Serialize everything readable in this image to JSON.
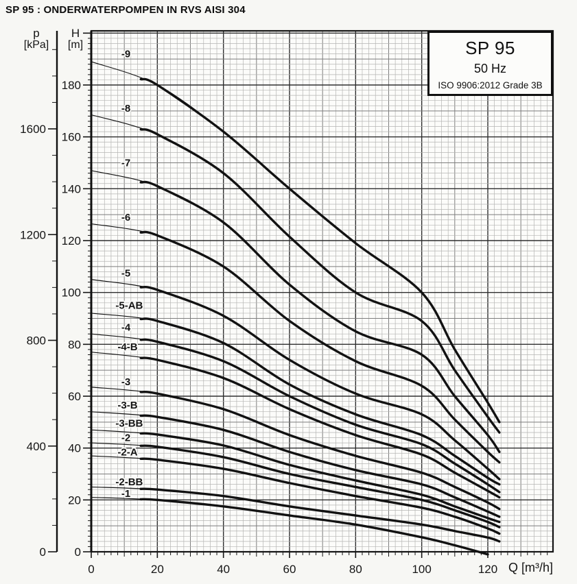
{
  "page": {
    "title": "SP 95 : ONDERWATERPOMPEN IN RVS AISI 304"
  },
  "legend": {
    "model": "SP 95",
    "frequency": "50 Hz",
    "standard": "ISO 9906:2012 Grade 3B"
  },
  "axes": {
    "pressure": {
      "symbol": "p",
      "unit": "[kPa]",
      "tick_labels": [
        0,
        400,
        800,
        1200,
        1600
      ],
      "minor_step": 100,
      "max": 1900
    },
    "head": {
      "symbol": "H",
      "unit": "[m]",
      "tick_labels": [
        0,
        20,
        40,
        60,
        80,
        100,
        120,
        140,
        160,
        180
      ],
      "minor_step": 2,
      "max": 200
    },
    "flow": {
      "title": "Q [m³/h]",
      "tick_labels": [
        0,
        20,
        40,
        60,
        80,
        100,
        120
      ],
      "minor_step": 2,
      "max": 138
    }
  },
  "chart_data": {
    "type": "line",
    "title": "SP 95 pump performance curves, 50 Hz",
    "xlabel": "Q [m³/h]",
    "ylabel_left_outer": "p [kPa]",
    "ylabel_left_inner": "H [m]",
    "xlim": [
      0,
      140
    ],
    "ylim_head_m": [
      0,
      201
    ],
    "ylim_pressure_kpa": [
      0,
      1970
    ],
    "grid": {
      "minor_step": 2,
      "medium_step": 10,
      "major_step": 20,
      "grid_on": true
    },
    "legend_position": "top-right",
    "curve_thin_until_q": 15,
    "series": [
      {
        "label": "-9",
        "shutoff_head_m": 189,
        "label_pos": [
          10.5,
          192
        ],
        "points": [
          [
            0,
            189
          ],
          [
            20,
            180
          ],
          [
            40,
            162
          ],
          [
            60,
            140
          ],
          [
            80,
            119
          ],
          [
            100,
            100
          ],
          [
            110,
            78
          ],
          [
            120,
            57.5
          ],
          [
            123.5,
            50
          ]
        ]
      },
      {
        "label": "-8",
        "shutoff_head_m": 168.5,
        "label_pos": [
          10.5,
          171
        ],
        "points": [
          [
            0,
            168.5
          ],
          [
            20,
            161
          ],
          [
            40,
            146
          ],
          [
            60,
            121.5
          ],
          [
            80,
            100
          ],
          [
            100,
            89
          ],
          [
            110,
            70
          ],
          [
            120,
            52
          ],
          [
            123.5,
            46
          ]
        ]
      },
      {
        "label": "-7",
        "shutoff_head_m": 147,
        "label_pos": [
          10.5,
          150
        ],
        "points": [
          [
            0,
            147
          ],
          [
            20,
            141
          ],
          [
            40,
            127
          ],
          [
            60,
            103
          ],
          [
            80,
            85
          ],
          [
            100,
            76
          ],
          [
            110,
            60
          ],
          [
            120,
            45
          ],
          [
            123.5,
            38.5
          ]
        ]
      },
      {
        "label": "-6",
        "shutoff_head_m": 126.5,
        "label_pos": [
          10.5,
          129
        ],
        "points": [
          [
            0,
            126.5
          ],
          [
            20,
            122
          ],
          [
            40,
            110
          ],
          [
            60,
            89
          ],
          [
            80,
            73.5
          ],
          [
            100,
            64
          ],
          [
            110,
            51
          ],
          [
            120,
            38.5
          ],
          [
            123.5,
            34.5
          ]
        ]
      },
      {
        "label": "-5",
        "shutoff_head_m": 105,
        "label_pos": [
          10.5,
          107.5
        ],
        "points": [
          [
            0,
            105
          ],
          [
            20,
            101
          ],
          [
            40,
            91
          ],
          [
            60,
            74
          ],
          [
            80,
            61
          ],
          [
            100,
            53
          ],
          [
            110,
            43
          ],
          [
            120,
            32
          ],
          [
            123.5,
            28
          ]
        ]
      },
      {
        "label": "-5-AB",
        "shutoff_head_m": 92,
        "label_pos": [
          11.5,
          95
        ],
        "points": [
          [
            0,
            92
          ],
          [
            20,
            89
          ],
          [
            40,
            80.5
          ],
          [
            60,
            64.5
          ],
          [
            80,
            53
          ],
          [
            100,
            45
          ],
          [
            110,
            37
          ],
          [
            120,
            28.5
          ],
          [
            123.5,
            26
          ]
        ]
      },
      {
        "label": "-4",
        "shutoff_head_m": 84,
        "label_pos": [
          10.5,
          86.5
        ],
        "points": [
          [
            0,
            84
          ],
          [
            20,
            81
          ],
          [
            40,
            73.5
          ],
          [
            60,
            60
          ],
          [
            80,
            49
          ],
          [
            100,
            41.5
          ],
          [
            110,
            34
          ],
          [
            120,
            26
          ],
          [
            123.5,
            23
          ]
        ]
      },
      {
        "label": "-4-B",
        "shutoff_head_m": 77,
        "label_pos": [
          11,
          79
        ],
        "points": [
          [
            0,
            77
          ],
          [
            20,
            74
          ],
          [
            40,
            67
          ],
          [
            60,
            55
          ],
          [
            80,
            45
          ],
          [
            100,
            37.5
          ],
          [
            110,
            30.5
          ],
          [
            120,
            23.5
          ],
          [
            123.5,
            21
          ]
        ]
      },
      {
        "label": "-3",
        "shutoff_head_m": 63.5,
        "label_pos": [
          10.5,
          65.5
        ],
        "points": [
          [
            0,
            63.5
          ],
          [
            20,
            61
          ],
          [
            40,
            55
          ],
          [
            60,
            45
          ],
          [
            80,
            37
          ],
          [
            100,
            30.5
          ],
          [
            110,
            25
          ],
          [
            120,
            19
          ],
          [
            123.5,
            16.5
          ]
        ]
      },
      {
        "label": "-3-B",
        "shutoff_head_m": 54,
        "label_pos": [
          11,
          56.5
        ],
        "points": [
          [
            0,
            54
          ],
          [
            20,
            52
          ],
          [
            40,
            47
          ],
          [
            60,
            38.5
          ],
          [
            80,
            31.5
          ],
          [
            100,
            26
          ],
          [
            110,
            21
          ],
          [
            120,
            15.5
          ],
          [
            123.5,
            13.5
          ]
        ]
      },
      {
        "label": "-3-BB",
        "shutoff_head_m": 47,
        "label_pos": [
          11.5,
          49.5
        ],
        "points": [
          [
            0,
            47
          ],
          [
            20,
            45.2
          ],
          [
            40,
            41
          ],
          [
            60,
            33.5
          ],
          [
            80,
            27.5
          ],
          [
            100,
            22
          ],
          [
            110,
            17.5
          ],
          [
            120,
            13
          ],
          [
            123.5,
            11.5
          ]
        ]
      },
      {
        "label": "-2",
        "shutoff_head_m": 42,
        "label_pos": [
          10.5,
          44
        ],
        "points": [
          [
            0,
            42
          ],
          [
            20,
            40.5
          ],
          [
            40,
            36.5
          ],
          [
            60,
            30
          ],
          [
            80,
            25
          ],
          [
            100,
            20
          ],
          [
            110,
            16
          ],
          [
            120,
            11.5
          ],
          [
            123.5,
            9.5
          ]
        ]
      },
      {
        "label": "-2-A",
        "shutoff_head_m": 37,
        "label_pos": [
          11,
          38.5
        ],
        "points": [
          [
            0,
            37
          ],
          [
            20,
            35.5
          ],
          [
            40,
            32
          ],
          [
            60,
            26.5
          ],
          [
            80,
            21.5
          ],
          [
            100,
            17
          ],
          [
            110,
            13.5
          ],
          [
            120,
            9
          ],
          [
            123.5,
            7
          ]
        ]
      },
      {
        "label": "-2-BB",
        "shutoff_head_m": 25,
        "label_pos": [
          11.5,
          27
        ],
        "points": [
          [
            0,
            25
          ],
          [
            20,
            24
          ],
          [
            40,
            21.5
          ],
          [
            60,
            17.5
          ],
          [
            80,
            14
          ],
          [
            100,
            10.5
          ],
          [
            110,
            8
          ],
          [
            120,
            5.5
          ],
          [
            123.5,
            4
          ]
        ]
      },
      {
        "label": "-1",
        "shutoff_head_m": 21,
        "label_pos": [
          10.5,
          22.5
        ],
        "points": [
          [
            0,
            21
          ],
          [
            20,
            20
          ],
          [
            40,
            17.5
          ],
          [
            60,
            14
          ],
          [
            80,
            10.5
          ],
          [
            100,
            5.6
          ],
          [
            110,
            2.5
          ],
          [
            120,
            -1
          ]
        ]
      }
    ]
  }
}
